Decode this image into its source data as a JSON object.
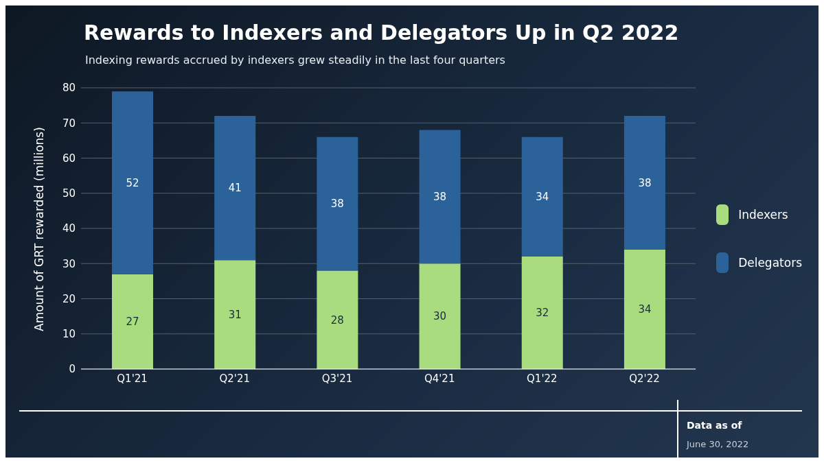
{
  "chart_data": {
    "type": "bar",
    "title": "Rewards to Indexers and Delegators Up in Q2 2022",
    "subtitle": "Indexing rewards accrued by indexers grew steadily in the last four quarters",
    "ylabel": "Amount of GRT rewarded (millions)",
    "categories": [
      "Q1'21",
      "Q2'21",
      "Q3'21",
      "Q4'21",
      "Q1'22",
      "Q2'22"
    ],
    "series": [
      {
        "name": "Indexers",
        "color": "#a8dc7e",
        "values": [
          27,
          31,
          28,
          30,
          32,
          34
        ]
      },
      {
        "name": "Delegators",
        "color": "#2a6299",
        "values": [
          52,
          41,
          38,
          38,
          34,
          38
        ]
      }
    ],
    "stacked": true,
    "data_labels": true,
    "ylim": [
      0,
      80
    ],
    "yticks": [
      0,
      10,
      20,
      30,
      40,
      50,
      60,
      70,
      80
    ],
    "grid": "y",
    "legend": "right",
    "annotations": [
      "Data as of",
      "June 30, 2022"
    ]
  }
}
